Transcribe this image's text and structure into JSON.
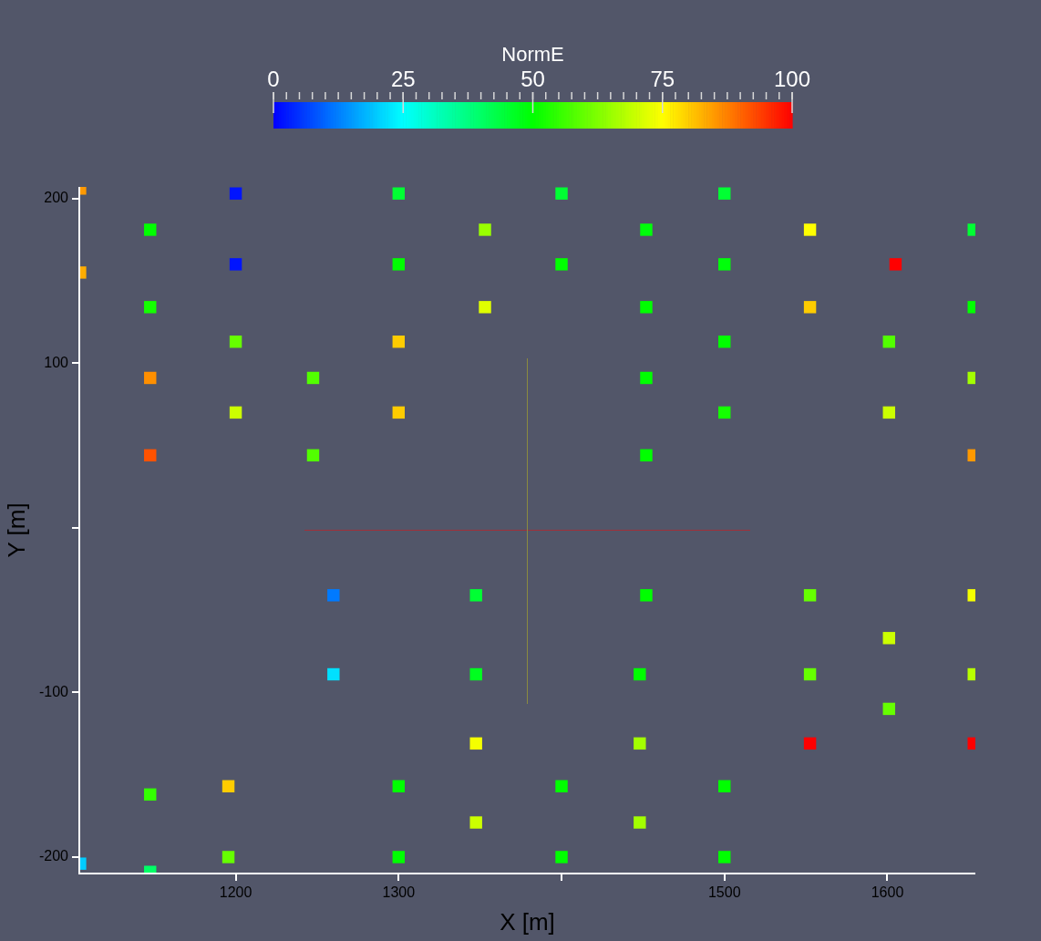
{
  "chart_data": {
    "type": "scatter",
    "xlabel": "X [m]",
    "ylabel": "Y [m]",
    "clabel": "NormE",
    "clim": [
      0,
      100
    ],
    "cticks": [
      0,
      25,
      50,
      75,
      100
    ],
    "xlim": [
      1104,
      1654
    ],
    "ylim": [
      -210,
      207
    ],
    "xticks": [
      1200,
      1300,
      {
        "value": 1400,
        "label": null
      },
      1500,
      1600
    ],
    "yticks": [
      -200,
      -100,
      {
        "value": 0,
        "label": null
      },
      100,
      200
    ],
    "grid": false,
    "legend": false,
    "marker": "square",
    "series": [
      {
        "x": [
          1104.5,
          1200,
          1300,
          1400,
          1500,
          1147.5,
          1353,
          1452,
          1552.5,
          1653,
          1104.5,
          1200,
          1300,
          1400,
          1500,
          1605,
          1147.5,
          1353,
          1452,
          1552.5,
          1653,
          1200,
          1300,
          1500,
          1601,
          1147.5,
          1247.5,
          1452,
          1653,
          1200,
          1300,
          1500,
          1601,
          1147.5,
          1247.5,
          1452,
          1653,
          1260,
          1347.5,
          1452,
          1552.5,
          1653,
          1601,
          1260,
          1347.5,
          1448,
          1552.5,
          1653,
          1601,
          1347.5,
          1448,
          1552.5,
          1653,
          1147.5,
          1195.5,
          1300,
          1400,
          1500,
          1347.5,
          1448,
          1195.5,
          1300,
          1400,
          1500,
          1104.5,
          1147.5
        ],
        "values": [
          206,
          203,
          203,
          203,
          203,
          181,
          181,
          181,
          181,
          181,
          155,
          160,
          160,
          160,
          160,
          160,
          134,
          134,
          134,
          134,
          134,
          113,
          113,
          113,
          113,
          91,
          91,
          91,
          91,
          70,
          70,
          70,
          70,
          44,
          44,
          44,
          44,
          -41,
          -41,
          -41,
          -41,
          -41,
          -67,
          -89,
          -89,
          -89,
          -89,
          -89,
          -110,
          -131,
          -131,
          -131,
          -131,
          -162,
          -157,
          -157,
          -157,
          -157,
          -179,
          -179,
          -200,
          -200,
          -200,
          -200,
          -204,
          -209
        ],
        "cvalues": [
          85,
          2,
          45,
          45,
          45,
          50,
          65,
          49,
          75,
          45,
          83,
          2,
          50,
          50,
          49,
          100,
          52,
          72,
          50,
          80,
          50,
          60,
          80,
          50,
          58,
          86,
          58,
          50,
          66,
          70,
          80,
          52,
          70,
          92,
          58,
          50,
          85,
          12,
          45,
          50,
          60,
          74,
          70,
          22,
          47,
          50,
          60,
          68,
          60,
          74,
          66,
          100,
          100,
          55,
          80,
          50,
          50,
          50,
          70,
          66,
          60,
          50,
          50,
          50,
          20,
          40
        ]
      }
    ]
  }
}
